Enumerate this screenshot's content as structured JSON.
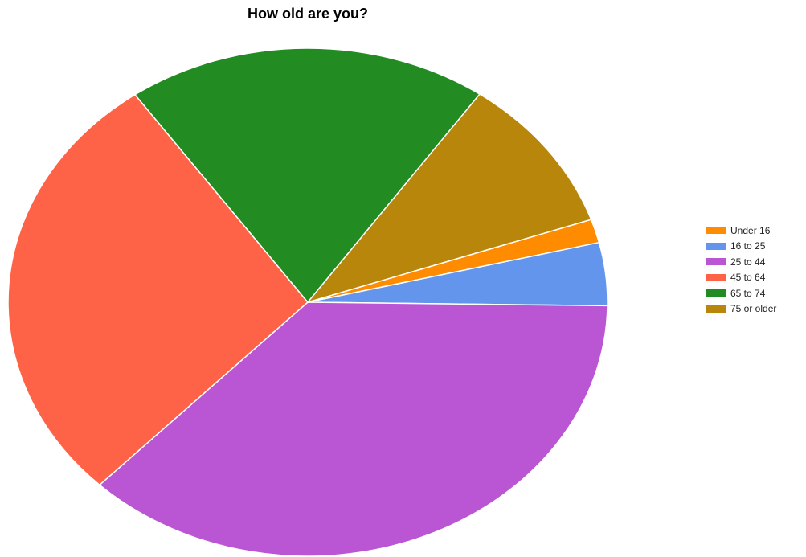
{
  "chart_data": {
    "type": "pie",
    "title": "How old are you?",
    "categories": [
      "Under 16",
      "16 to 25",
      "25 to 44",
      "45 to 64",
      "65 to 74",
      "75 or older"
    ],
    "values": [
      1.5,
      4.0,
      37.0,
      28.0,
      19.5,
      10.0
    ],
    "colors": [
      "#ff8c00",
      "#6495ed",
      "#ba55d3",
      "#ff6347",
      "#228b22",
      "#b8860b"
    ],
    "legend_position": "right"
  }
}
